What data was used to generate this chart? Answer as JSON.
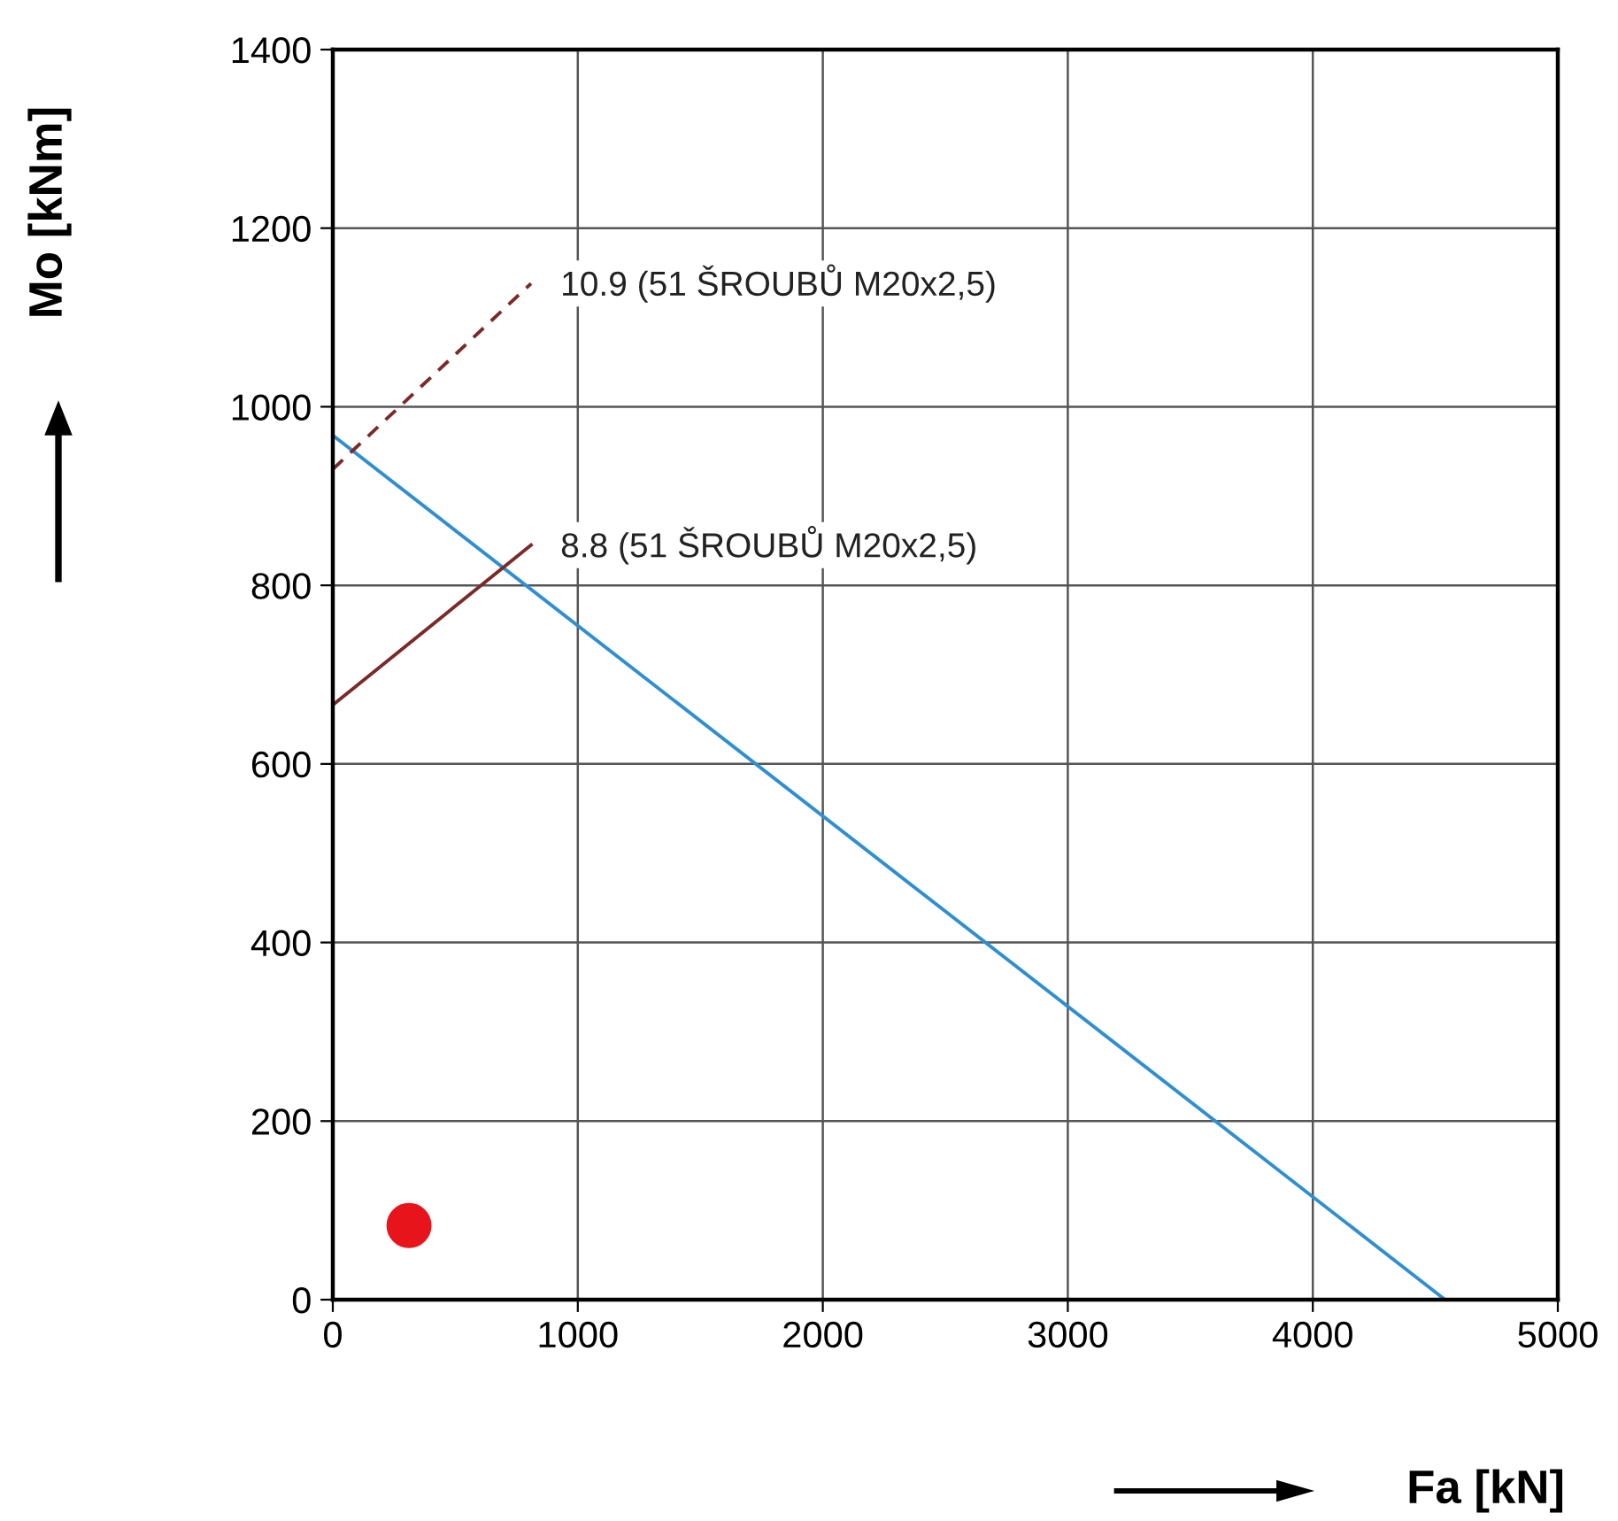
{
  "chart_data": {
    "type": "line",
    "xlabel": "Fa [kN]",
    "ylabel": "Mo [kNm]",
    "xlim": [
      0,
      5000
    ],
    "ylim": [
      0,
      1400
    ],
    "xticks": [
      0,
      1000,
      2000,
      3000,
      4000,
      5000
    ],
    "yticks": [
      0,
      200,
      400,
      600,
      800,
      1000,
      1200,
      1400
    ],
    "grid": true,
    "marker": "none",
    "series": [
      {
        "color": "#2f8fd0",
        "x": [
          0,
          4540
        ],
        "values": [
          968,
          0
        ],
        "line_style": "solid"
      },
      {
        "name": "8.8 (51 ŠROUBŮ M20x2,5)",
        "color": "#7b2a2a",
        "x": [
          0,
          809
        ],
        "values": [
          666,
          845
        ],
        "line_style": "solid"
      },
      {
        "name": "10.9 (51 ŠROUBŮ M20x2,5)",
        "color": "#7b2a2a",
        "x": [
          0,
          809
        ],
        "values": [
          930,
          1138
        ],
        "line_style": "dashed"
      },
      {
        "type": "scatter",
        "color": "#e8141c",
        "x": [
          311
        ],
        "values": [
          83
        ],
        "marker": "circle"
      }
    ]
  }
}
